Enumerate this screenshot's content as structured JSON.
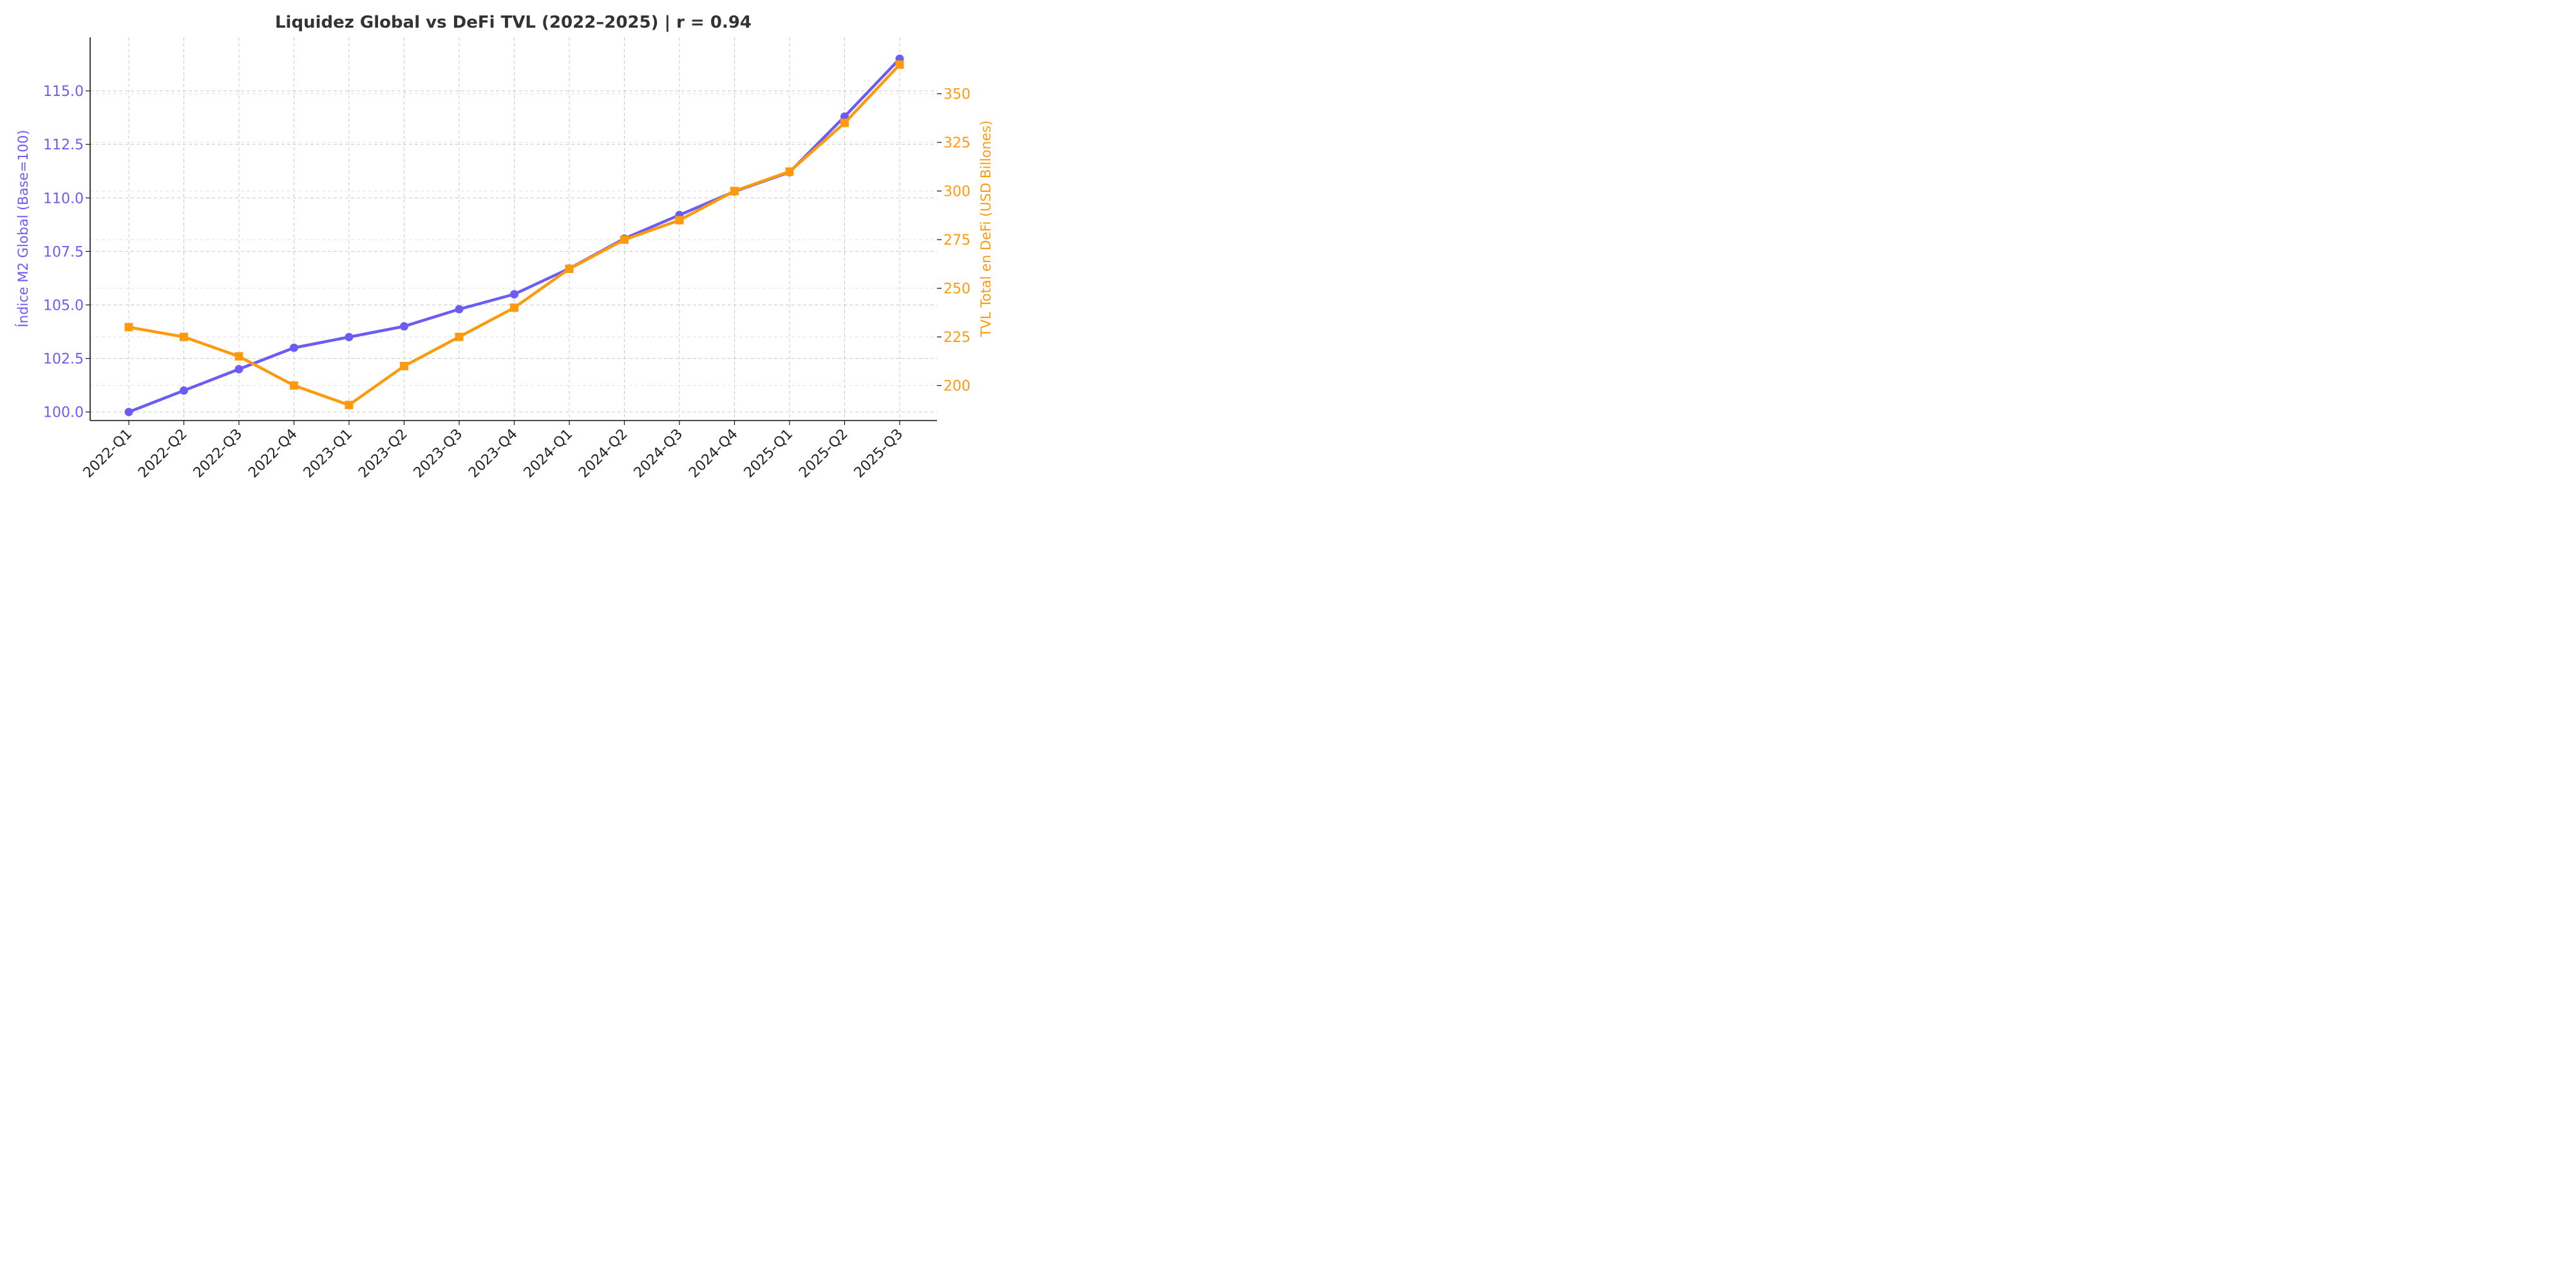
{
  "chart_data": {
    "type": "line",
    "title": "Liquidez Global vs DeFi TVL (2022–2025) | r = 0.94",
    "categories": [
      "2022-Q1",
      "2022-Q2",
      "2022-Q3",
      "2022-Q4",
      "2023-Q1",
      "2023-Q2",
      "2023-Q3",
      "2023-Q4",
      "2024-Q1",
      "2024-Q2",
      "2024-Q3",
      "2024-Q4",
      "2025-Q1",
      "2025-Q2",
      "2025-Q3"
    ],
    "y_left": {
      "label": "Índice M2 Global (Base=100)",
      "lim": [
        99.6,
        117.5
      ],
      "ticks": [
        100.0,
        102.5,
        105.0,
        107.5,
        110.0,
        112.5,
        115.0
      ],
      "tick_labels": [
        "100.0",
        "102.5",
        "105.0",
        "107.5",
        "110.0",
        "112.5",
        "115.0"
      ],
      "color": "#6b5cf5"
    },
    "y_right": {
      "label": "TVL Total en DeFi (USD Billones)",
      "lim": [
        182,
        379
      ],
      "ticks": [
        200,
        225,
        250,
        275,
        300,
        325,
        350
      ],
      "tick_labels": [
        "200",
        "225",
        "250",
        "275",
        "300",
        "325",
        "350"
      ],
      "color": "#ff9a0f"
    },
    "series": [
      {
        "axis": "left",
        "marker": "circle",
        "color": "#6b5cf5",
        "values": [
          100.0,
          101.0,
          102.0,
          103.0,
          103.5,
          104.0,
          104.8,
          105.5,
          106.7,
          108.1,
          109.2,
          110.3,
          111.2,
          113.8,
          116.5
        ]
      },
      {
        "axis": "right",
        "marker": "square",
        "color": "#ff9a0f",
        "values": [
          230,
          225,
          215,
          200,
          190,
          210,
          225,
          240,
          260,
          275,
          285,
          300,
          310,
          335,
          365
        ]
      }
    ],
    "grid": true
  }
}
